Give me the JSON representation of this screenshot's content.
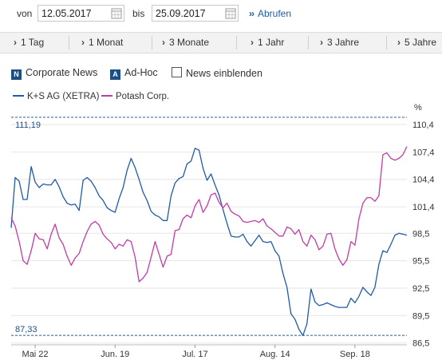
{
  "date_range": {
    "from_label": "von",
    "from_value": "12.05.2017",
    "to_label": "bis",
    "to_value": "25.09.2017",
    "submit_label": "Abrufen",
    "submit_icon": "double-chevron-right"
  },
  "periods": [
    "1 Tag",
    "1 Monat",
    "3 Monate",
    "1 Jahr",
    "3 Jahre",
    "5 Jahre"
  ],
  "toggles": {
    "corporate_news": {
      "badge": "N",
      "label": "Corporate News"
    },
    "ad_hoc": {
      "badge": "A",
      "label": "Ad-Hoc"
    },
    "news_einblenden": {
      "label": "News einblenden",
      "checked": false
    }
  },
  "colors": {
    "ks": "#1f5ba8",
    "potash": "#c43aa6",
    "badge": "#1b4f86",
    "link": "#1f5a9e",
    "reference": "#3f6fa8"
  },
  "chart_data": {
    "type": "line",
    "unit_label": "%",
    "x_tick_labels": [
      "Mai 22",
      "Jun. 19",
      "Jul. 17",
      "Aug. 14",
      "Sep. 18"
    ],
    "x_tick_index": [
      6,
      26,
      46,
      66,
      86
    ],
    "y_ticks": [
      110.4,
      107.4,
      104.4,
      101.4,
      98.5,
      95.5,
      92.5,
      89.5,
      86.5
    ],
    "y_tick_labels": [
      "110,4",
      "107,4",
      "104,4",
      "101,4",
      "98,5",
      "95,5",
      "92,5",
      "89,5",
      "86,5"
    ],
    "ylim": [
      86.3,
      111.8
    ],
    "grid": "horizontal",
    "reference_lines": [
      {
        "value": 111.19,
        "label": "111,19"
      },
      {
        "value": 87.33,
        "label": "87,33"
      }
    ],
    "series": [
      {
        "name": "K+S AG (XETRA)",
        "color": "#1f5ba8",
        "values": [
          99.1,
          104.6,
          104.2,
          102.2,
          102.2,
          105.8,
          104.1,
          103.5,
          103.9,
          103.8,
          103.8,
          104.4,
          103.6,
          102.5,
          101.8,
          101.6,
          101.7,
          101.0,
          104.3,
          104.6,
          104.2,
          103.5,
          102.6,
          102.1,
          101.3,
          101.0,
          100.8,
          102.3,
          103.5,
          105.4,
          106.7,
          105.7,
          104.4,
          103.0,
          102.1,
          100.9,
          100.5,
          100.3,
          99.9,
          99.9,
          102.6,
          104.0,
          104.5,
          104.7,
          106.1,
          106.4,
          107.8,
          107.6,
          105.6,
          104.3,
          105.0,
          103.8,
          102.7,
          101.1,
          99.6,
          98.2,
          98.1,
          98.1,
          98.4,
          97.6,
          97.1,
          97.7,
          98.3,
          97.6,
          97.5,
          97.6,
          96.6,
          96.0,
          94.1,
          92.6,
          89.7,
          89.1,
          88.0,
          87.3,
          88.6,
          92.4,
          91.0,
          90.6,
          90.7,
          90.9,
          90.7,
          90.5,
          90.4,
          90.4,
          90.4,
          91.4,
          90.9,
          91.6,
          92.6,
          92.1,
          91.7,
          92.6,
          95.1,
          96.6,
          96.4,
          97.3,
          98.3,
          98.5,
          98.4,
          98.3
        ]
      },
      {
        "name": "Potash Corp.",
        "color": "#c43aa6",
        "values": [
          100.2,
          99.3,
          97.6,
          95.5,
          95.1,
          96.6,
          98.5,
          97.9,
          97.8,
          96.8,
          98.4,
          99.5,
          98.0,
          97.3,
          96.0,
          95.0,
          95.8,
          96.3,
          97.6,
          98.7,
          99.5,
          99.8,
          99.4,
          98.4,
          97.9,
          97.5,
          96.8,
          97.3,
          97.1,
          97.8,
          97.6,
          95.9,
          93.2,
          93.6,
          94.2,
          95.9,
          97.6,
          96.2,
          94.8,
          96.0,
          96.2,
          98.8,
          98.9,
          100.1,
          100.5,
          100.2,
          101.5,
          102.2,
          100.8,
          101.5,
          102.7,
          102.9,
          101.9,
          101.3,
          101.8,
          100.9,
          100.6,
          100.4,
          99.8,
          99.7,
          99.8,
          99.9,
          99.7,
          100.1,
          99.3,
          99.0,
          98.6,
          98.2,
          98.2,
          99.2,
          99.0,
          98.4,
          98.9,
          97.6,
          97.1,
          98.3,
          97.8,
          96.7,
          97.1,
          98.4,
          98.5,
          96.8,
          95.7,
          95.0,
          95.6,
          97.6,
          97.2,
          100.1,
          101.8,
          102.4,
          102.4,
          102.0,
          102.6,
          107.1,
          107.3,
          106.7,
          106.5,
          106.7,
          107.1,
          108.0
        ]
      }
    ]
  }
}
